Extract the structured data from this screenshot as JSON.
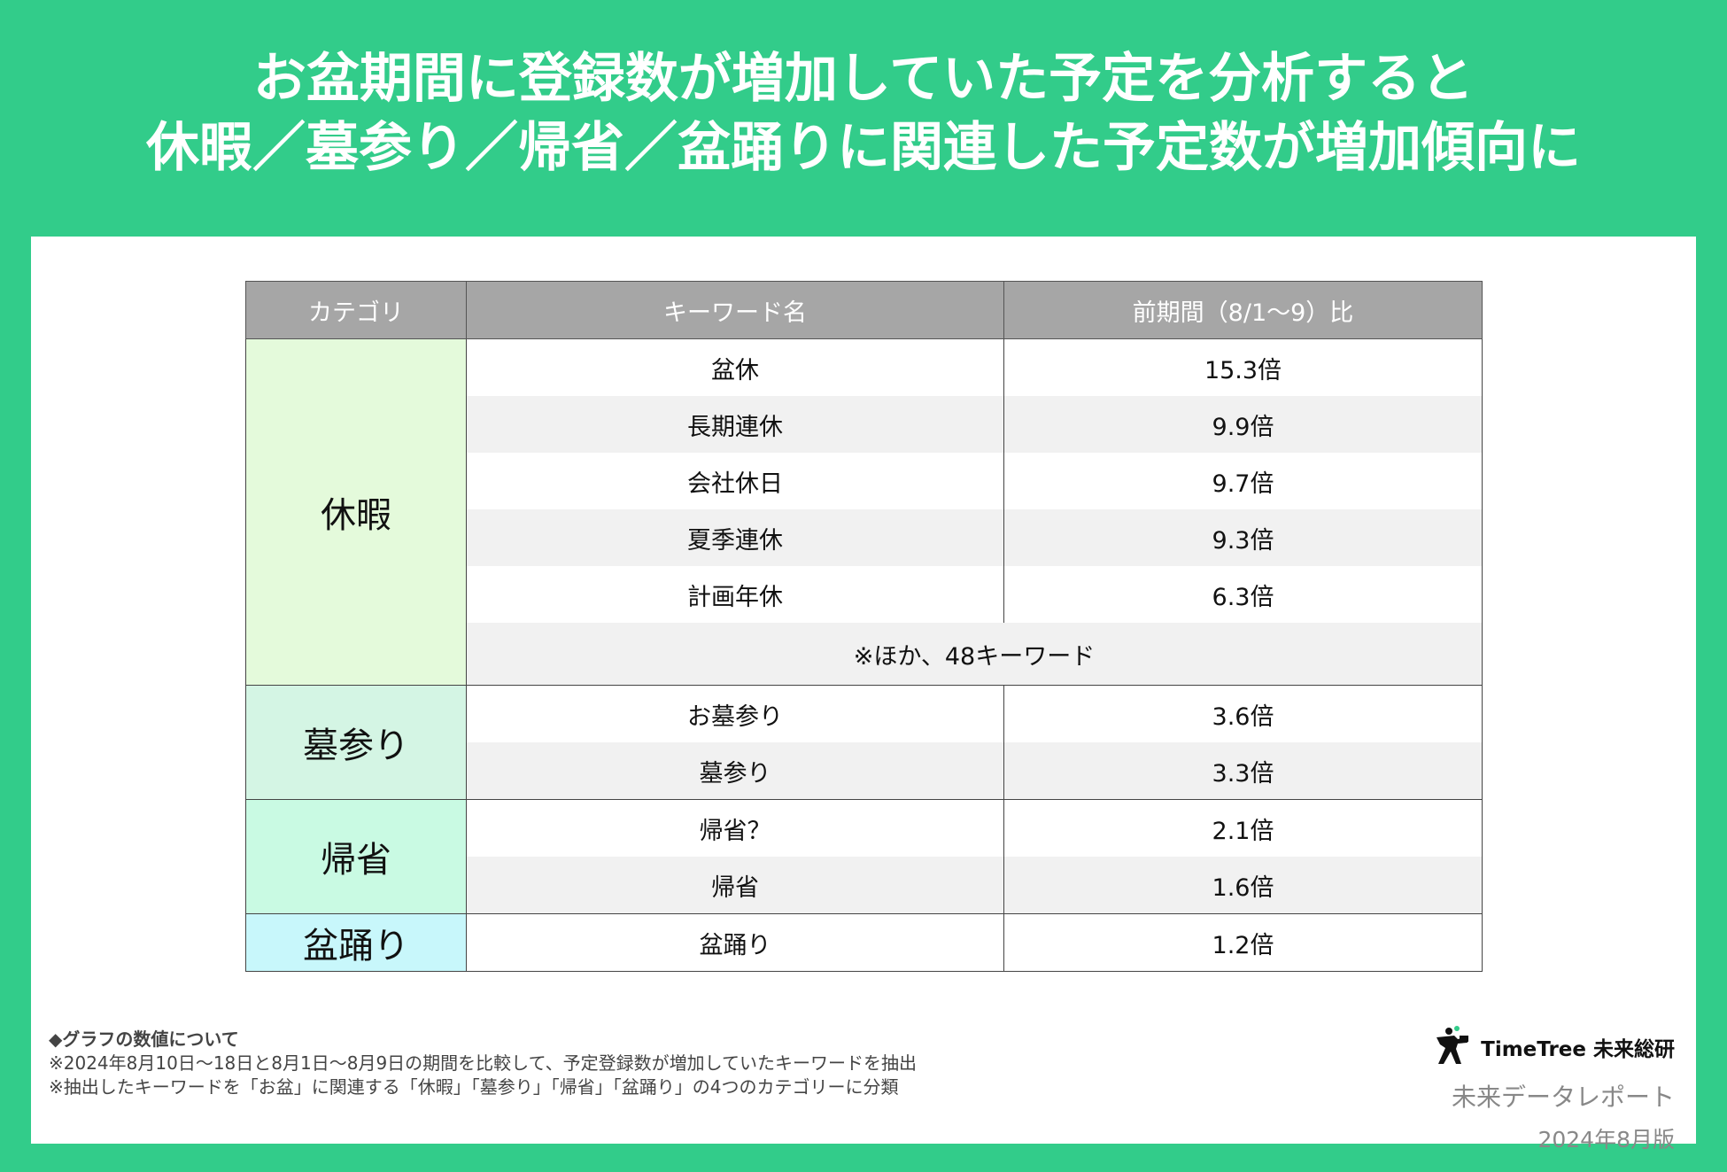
{
  "title": {
    "line1": "お盆期間に登録数が増加していた予定を分析すると",
    "line2": "休暇／墓参り／帰省／盆踊りに関連した予定数が増加傾向に"
  },
  "table": {
    "headers": [
      "カテゴリ",
      "キーワード名",
      "前期間（8/1〜9）比"
    ],
    "categories": {
      "kyuka": "休暇",
      "haka": "墓参り",
      "kisei": "帰省",
      "bon": "盆踊り"
    },
    "rows": [
      {
        "keyword": "盆休",
        "ratio": "15.3倍"
      },
      {
        "keyword": "長期連休",
        "ratio": "9.9倍"
      },
      {
        "keyword": "会社休日",
        "ratio": "9.7倍"
      },
      {
        "keyword": "夏季連休",
        "ratio": "9.3倍"
      },
      {
        "keyword": "計画年休",
        "ratio": "6.3倍"
      },
      {
        "keyword": "お墓参り",
        "ratio": "3.6倍"
      },
      {
        "keyword": "墓参り",
        "ratio": "3.3倍"
      },
      {
        "keyword": "帰省？",
        "ratio": "2.1倍"
      },
      {
        "keyword": "帰省",
        "ratio": "1.6倍"
      },
      {
        "keyword": "盆踊り",
        "ratio": "1.2倍"
      }
    ],
    "other_note": "※ほか、48キーワード"
  },
  "notes": {
    "title": "◆グラフの数値について",
    "line1": "※2024年8月10日〜18日と8月1日〜8月9日の期間を比較して、予定登録数が増加していたキーワードを抽出",
    "line2": "※抽出したキーワードを「お盆」に関連する「休暇」「墓参り」「帰省」「盆踊り」の4つのカテゴリーに分類"
  },
  "brand": {
    "logo_icon": "photographer-silhouette-icon",
    "logo_text": "TimeTree 未来総研",
    "report": "未来データレポート",
    "edition": "2024年8月版"
  },
  "colors": {
    "background": "#32cc8a",
    "header": "#a6a6a6",
    "kyuka": "#e4fadb",
    "haka": "#d4f5e4",
    "kisei": "#c9fae3",
    "bon": "#c8f7fb"
  }
}
